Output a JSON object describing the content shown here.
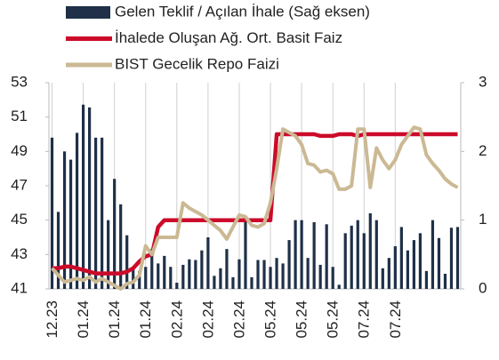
{
  "chart_data": {
    "type": "bar-line",
    "categories": [
      "12.23",
      null,
      null,
      null,
      null,
      "01.24",
      null,
      null,
      null,
      null,
      "01.24",
      null,
      null,
      null,
      null,
      "01.24",
      null,
      null,
      null,
      null,
      "02.24",
      null,
      null,
      null,
      null,
      "02.24",
      null,
      null,
      null,
      null,
      "02.24",
      null,
      null,
      null,
      null,
      "05.24",
      null,
      null,
      null,
      null,
      "05.24",
      null,
      null,
      null,
      null,
      "05.24",
      null,
      null,
      null,
      null,
      "07.24",
      null,
      null,
      null,
      null,
      "07.24",
      null,
      null,
      null,
      null,
      null,
      null,
      null,
      null,
      null,
      null
    ],
    "series": [
      {
        "name": "Gelen Teklif / Açılan İhale (Sağ eksen)",
        "kind": "bar",
        "axis": "y2",
        "color": "#1f3048",
        "values": [
          2.2,
          1.12,
          2.0,
          1.88,
          2.27,
          2.68,
          2.64,
          2.2,
          2.2,
          1.0,
          1.6,
          1.23,
          0.78,
          0.32,
          0.26,
          0.32,
          0.58,
          0.37,
          0.48,
          0.32,
          0.09,
          0.35,
          0.43,
          0.42,
          0.56,
          0.75,
          0.19,
          0.3,
          0.58,
          0.17,
          0.43,
          0.97,
          0.17,
          0.42,
          0.42,
          0.32,
          0.45,
          0.37,
          0.71,
          1.0,
          1.0,
          0.45,
          0.97,
          0.35,
          0.94,
          0.32,
          0.06,
          0.81,
          0.92,
          1.0,
          0.81,
          1.1,
          1.0,
          0.3,
          0.45,
          0.62,
          0.9,
          0.56,
          0.71,
          0.81,
          0.26,
          1.0,
          0.74,
          0.22,
          0.89,
          0.9
        ]
      },
      {
        "name": "İhalede Oluşan Ağ. Ort. Basit Faiz",
        "kind": "line",
        "color": "#cc0a2a",
        "values": [
          42.2,
          42.2,
          42.3,
          42.3,
          42.2,
          42.1,
          42.0,
          41.9,
          41.9,
          41.9,
          41.9,
          41.9,
          42.0,
          42.2,
          42.6,
          42.9,
          43.0,
          44.6,
          45.0,
          45.0,
          45.0,
          45.0,
          45.0,
          45.0,
          45.0,
          45.0,
          45.0,
          45.0,
          45.0,
          45.0,
          45.0,
          45.0,
          45.0,
          45.0,
          45.0,
          45.0,
          50.0,
          50.0,
          50.0,
          50.0,
          50.0,
          50.0,
          50.0,
          49.9,
          49.9,
          49.9,
          50.0,
          50.0,
          50.0,
          49.9,
          50.0,
          50.0,
          50.0,
          50.0,
          50.0,
          50.0,
          50.0,
          50.0,
          50.0,
          50.0,
          50.0,
          50.0,
          50.0,
          50.0,
          50.0,
          50.0
        ]
      },
      {
        "name": "BIST Gecelik Repo Faizi",
        "kind": "line",
        "color": "#cbb994",
        "values": [
          42.2,
          41.8,
          41.4,
          41.5,
          41.6,
          41.5,
          41.7,
          41.4,
          41.6,
          41.4,
          41.2,
          41.0,
          41.3,
          41.4,
          41.8,
          43.5,
          43.0,
          44.0,
          44.0,
          44.0,
          44.0,
          46.0,
          45.7,
          45.5,
          45.3,
          45.0,
          44.7,
          44.4,
          43.9,
          44.6,
          45.3,
          45.2,
          44.7,
          44.6,
          44.8,
          46.0,
          48.0,
          50.3,
          50.1,
          49.9,
          49.4,
          48.3,
          48.2,
          47.8,
          47.9,
          47.7,
          46.8,
          46.8,
          47.0,
          50.3,
          50.3,
          46.9,
          49.2,
          48.5,
          48.0,
          48.5,
          49.4,
          49.9,
          50.4,
          50.3,
          48.8,
          48.3,
          47.9,
          47.4,
          47.1,
          46.9
        ]
      }
    ],
    "ylim": [
      41,
      53
    ],
    "yticks": [
      41,
      43,
      45,
      47,
      49,
      51,
      53
    ],
    "y2lim": [
      0,
      3
    ],
    "y2ticks": [
      0,
      1,
      2,
      3
    ],
    "legend": "top",
    "grid": true
  }
}
